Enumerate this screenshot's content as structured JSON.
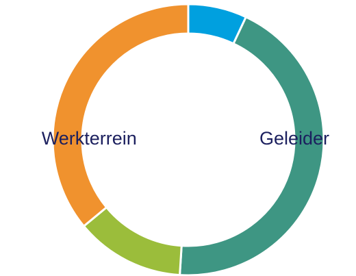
{
  "chart_data": {
    "type": "donut",
    "categories": [
      null,
      "Geleider",
      null,
      "Werkterrein"
    ],
    "values": [
      7,
      44,
      13,
      36
    ],
    "colors": [
      "#00a0df",
      "#3e9683",
      "#9bbd3b",
      "#f0922e"
    ]
  }
}
